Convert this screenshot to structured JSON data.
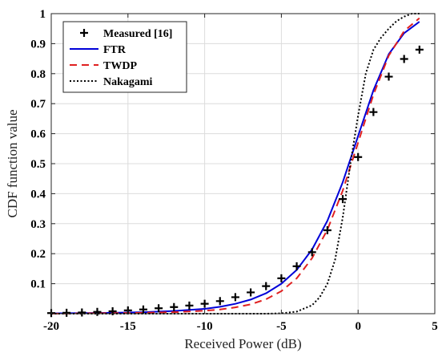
{
  "chart_data": {
    "type": "line",
    "xlabel": "Received Power (dB)",
    "ylabel": "CDF function value",
    "xlim": [
      -20,
      5
    ],
    "ylim": [
      0,
      1
    ],
    "x_ticks": [
      -20,
      -15,
      -10,
      -5,
      0,
      5
    ],
    "y_ticks": [
      0.1,
      0.2,
      0.3,
      0.4,
      0.5,
      0.6,
      0.7,
      0.8,
      0.9,
      1
    ],
    "grid": true,
    "legend_position": "top-left",
    "series": [
      {
        "name": "Measured [16]",
        "style": "markers-plus",
        "color": "#000000",
        "x": [
          -20,
          -19,
          -18,
          -17,
          -16,
          -15,
          -14,
          -13,
          -12,
          -11,
          -10,
          -9,
          -8,
          -7,
          -6,
          -5,
          -4,
          -3,
          -2,
          -1,
          0,
          1,
          2,
          3,
          4
        ],
        "y": [
          0.002,
          0.003,
          0.004,
          0.006,
          0.008,
          0.011,
          0.014,
          0.018,
          0.022,
          0.027,
          0.033,
          0.042,
          0.055,
          0.071,
          0.092,
          0.118,
          0.158,
          0.205,
          0.278,
          0.382,
          0.522,
          0.672,
          0.79,
          0.849,
          0.88
        ]
      },
      {
        "name": "FTR",
        "style": "solid",
        "color": "#0000d8",
        "x": [
          -20,
          -18,
          -16,
          -14,
          -12,
          -10,
          -9,
          -8,
          -7,
          -6,
          -5,
          -4,
          -3,
          -2,
          -1,
          0,
          1,
          2,
          3,
          4
        ],
        "y": [
          0.001,
          0.002,
          0.003,
          0.005,
          0.009,
          0.016,
          0.023,
          0.033,
          0.047,
          0.068,
          0.1,
          0.146,
          0.214,
          0.31,
          0.438,
          0.592,
          0.745,
          0.865,
          0.935,
          0.973
        ]
      },
      {
        "name": "TWDP",
        "style": "dashed",
        "color": "#e02020",
        "x": [
          -20,
          -18,
          -16,
          -14,
          -12,
          -10,
          -9,
          -8,
          -7,
          -6,
          -5,
          -4,
          -3,
          -2,
          -1,
          0,
          1,
          2,
          3,
          4
        ],
        "y": [
          0.0,
          0.001,
          0.002,
          0.003,
          0.005,
          0.01,
          0.014,
          0.021,
          0.031,
          0.048,
          0.075,
          0.118,
          0.185,
          0.28,
          0.41,
          0.57,
          0.73,
          0.86,
          0.942,
          0.985
        ]
      },
      {
        "name": "Nakagami",
        "style": "dotted",
        "color": "#000000",
        "x": [
          -20,
          -10,
          -7,
          -6,
          -5,
          -4,
          -3,
          -2.5,
          -2,
          -1.5,
          -1,
          -0.5,
          0,
          0.5,
          1,
          1.5,
          2,
          2.5,
          3,
          3.5,
          4
        ],
        "y": [
          0.0,
          0.0,
          0.0,
          0.0,
          0.001,
          0.007,
          0.028,
          0.055,
          0.1,
          0.18,
          0.32,
          0.5,
          0.66,
          0.8,
          0.88,
          0.92,
          0.95,
          0.975,
          0.99,
          1.0,
          1.0
        ]
      }
    ]
  }
}
